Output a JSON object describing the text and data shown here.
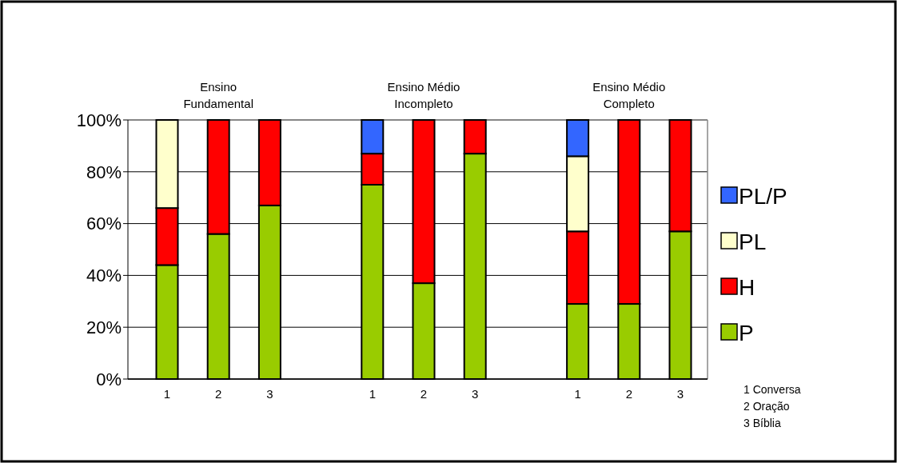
{
  "chart_data": {
    "type": "bar",
    "stacked": true,
    "categories": [
      "1",
      "2",
      "3",
      null,
      "1",
      "2",
      "3",
      null,
      "1",
      "2",
      "3"
    ],
    "series": [
      {
        "name": "P",
        "color": "#99cc00",
        "values": [
          44,
          56,
          67,
          null,
          75,
          37,
          87,
          null,
          29,
          29,
          57
        ]
      },
      {
        "name": "H",
        "color": "#ff0000",
        "values": [
          22,
          44,
          33,
          null,
          12,
          63,
          13,
          null,
          28,
          71,
          43
        ]
      },
      {
        "name": "PL",
        "color": "#ffffcc",
        "values": [
          34,
          0,
          0,
          null,
          0,
          0,
          0,
          null,
          29,
          0,
          0
        ]
      },
      {
        "name": "PL/P",
        "color": "#3366ff",
        "values": [
          0,
          0,
          0,
          null,
          13,
          0,
          0,
          null,
          14,
          0,
          0
        ]
      }
    ],
    "ylim": [
      0,
      100
    ],
    "yticks": [
      {
        "value": 0,
        "label": "0%"
      },
      {
        "value": 20,
        "label": "20%"
      },
      {
        "value": 40,
        "label": "40%"
      },
      {
        "value": 60,
        "label": "60%"
      },
      {
        "value": 80,
        "label": "80%"
      },
      {
        "value": 100,
        "label": "100%"
      }
    ],
    "grid": "y",
    "legend": "right",
    "annotations": [
      "Ensino\nFundamental",
      "Ensino Médio\nIncompleto",
      "Ensino Médio\nCompleto",
      "1 Conversa\n2 Oração\n3 Bíblia"
    ]
  }
}
